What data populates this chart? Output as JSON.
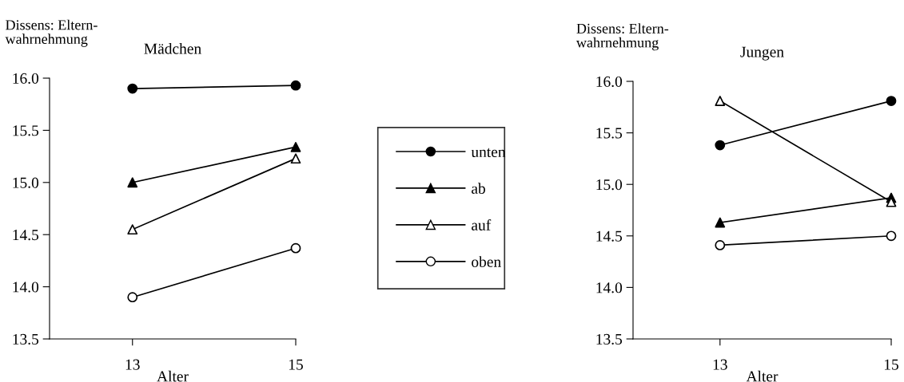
{
  "chart_data": [
    {
      "type": "line",
      "title": "Mädchen",
      "xlabel": "Alter",
      "ylabel": "Dissens: Eltern-\nwahrnehmung",
      "categories": [
        "13",
        "15"
      ],
      "ylim": [
        13.5,
        16.0
      ],
      "yticks": [
        {
          "value": 13.5,
          "label": "13.5"
        },
        {
          "value": 14.0,
          "label": "14.0"
        },
        {
          "value": 14.5,
          "label": "14.5"
        },
        {
          "value": 15.0,
          "label": "15.0"
        },
        {
          "value": 15.5,
          "label": "15.5"
        },
        {
          "value": 16.0,
          "label": "16.0"
        }
      ],
      "legend": "right",
      "line_style": "solid",
      "series": [
        {
          "name": "unten",
          "color": "#000000",
          "marker": "circle",
          "colors": [
            "#000000",
            "#000000"
          ],
          "values": [
            15.9,
            15.93
          ]
        },
        {
          "name": "ab",
          "color": "#000000",
          "marker": "triangle",
          "colors": [
            "#000000",
            "#000000"
          ],
          "values": [
            15.0,
            15.34
          ]
        },
        {
          "name": "auf",
          "color": "#000000",
          "marker": "triangle",
          "colors": [
            "#ffffff",
            "#ffffff"
          ],
          "values": [
            14.55,
            15.23
          ]
        },
        {
          "name": "oben",
          "color": "#000000",
          "marker": "circle",
          "colors": [
            "#ffffff",
            "#ffffff"
          ],
          "values": [
            13.9,
            14.37
          ]
        }
      ]
    },
    {
      "type": "line",
      "title": "Jungen",
      "xlabel": "Alter",
      "ylabel": "Dissens: Eltern-\nwahrnehmung",
      "categories": [
        "13",
        "15"
      ],
      "ylim": [
        13.5,
        16.0
      ],
      "yticks": [
        {
          "value": 13.5,
          "label": "13.5"
        },
        {
          "value": 14.0,
          "label": "14.0"
        },
        {
          "value": 14.5,
          "label": "14.5"
        },
        {
          "value": 15.0,
          "label": "15.0"
        },
        {
          "value": 15.5,
          "label": "15.5"
        },
        {
          "value": 16.0,
          "label": "16.0"
        }
      ],
      "line_style": "solid",
      "series": [
        {
          "color": "#000000",
          "marker": "circle",
          "colors": [
            "#000000",
            "#000000"
          ],
          "values": [
            15.38,
            15.81
          ]
        },
        {
          "color": "#000000",
          "marker": "triangle",
          "colors": [
            "#000000",
            "#000000"
          ],
          "values": [
            14.63,
            14.87
          ]
        },
        {
          "color": "#000000",
          "marker": "triangle",
          "colors": [
            "#ffffff",
            "#ffffff"
          ],
          "values": [
            15.81,
            14.83
          ]
        },
        {
          "color": "#000000",
          "marker": "circle",
          "colors": [
            "#ffffff",
            "#ffffff"
          ],
          "values": [
            14.41,
            14.5
          ]
        }
      ]
    }
  ]
}
